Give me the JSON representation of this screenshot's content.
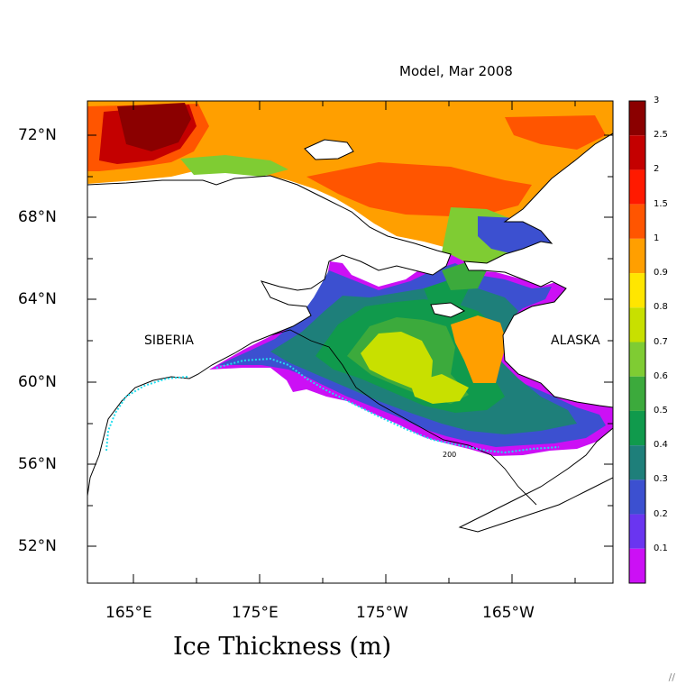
{
  "title": "Model, Mar 2008",
  "caption": "Ice Thickness (m)",
  "latitude_labels": [
    "72°N",
    "68°N",
    "64°N",
    "60°N",
    "56°N",
    "52°N"
  ],
  "longitude_labels": [
    "165°E",
    "175°E",
    "175°W",
    "165°W"
  ],
  "regions": {
    "siberia": "SIBERIA",
    "alaska": "ALASKA"
  },
  "isobath_label": "200",
  "colorbar": {
    "levels": [
      "3",
      "2.5",
      "2",
      "1.5",
      "1",
      "0.9",
      "0.8",
      "0.7",
      "0.6",
      "0.5",
      "0.4",
      "0.3",
      "0.2",
      "0.1"
    ],
    "colors": [
      "#8b0000",
      "#c40000",
      "#ff1a00",
      "#ff5500",
      "#ff9f00",
      "#ffe600",
      "#c8e000",
      "#7fcc33",
      "#3caa3c",
      "#109a4c",
      "#1e7f7a",
      "#3c50d0",
      "#6a35f0",
      "#cc10f5"
    ]
  },
  "colors": {
    "land": "#ffffff",
    "coastline": "#000000",
    "ice_edge": "#22ddee"
  }
}
